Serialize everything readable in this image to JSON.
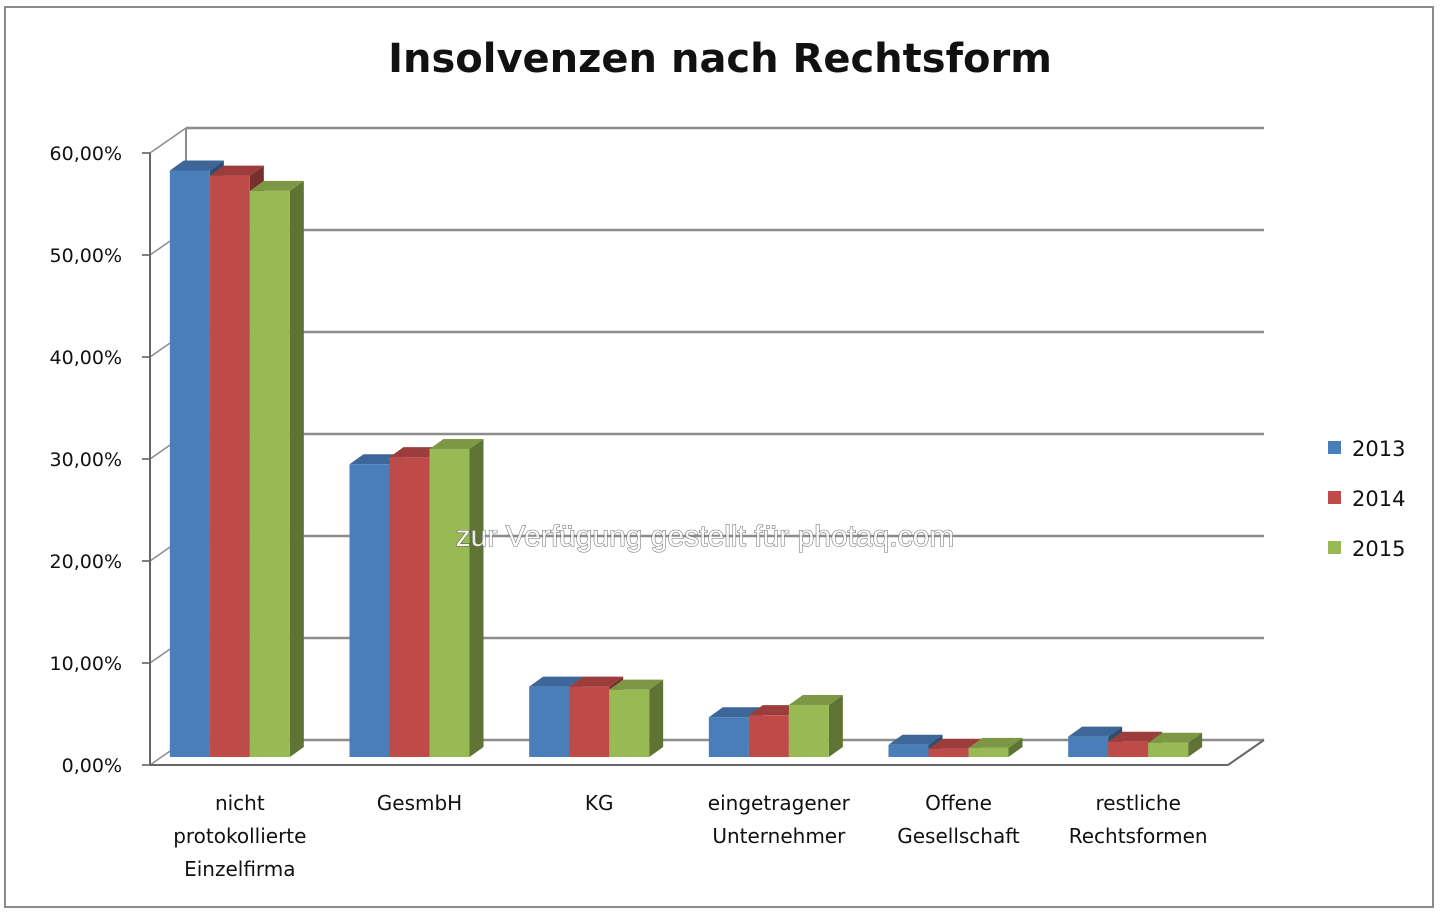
{
  "chart_data": {
    "type": "bar",
    "title": "Insolvenzen nach Rechtsform",
    "categories": [
      [
        "nicht",
        "protokollierte",
        "Einzelfirma"
      ],
      [
        "GesmbH"
      ],
      [
        "KG"
      ],
      [
        "eingetragener",
        "Unternehmer"
      ],
      [
        "Offene",
        "Gesellschaft"
      ],
      [
        "restliche",
        "Rechtsformen"
      ]
    ],
    "series": [
      {
        "name": "2013",
        "color": "#4a7ebb",
        "values": [
          57.5,
          28.7,
          6.9,
          3.9,
          1.2,
          2.0
        ]
      },
      {
        "name": "2014",
        "color": "#be4b48",
        "values": [
          57.0,
          29.4,
          6.9,
          4.1,
          0.8,
          1.5
        ]
      },
      {
        "name": "2015",
        "color": "#98b954",
        "values": [
          55.5,
          30.2,
          6.6,
          5.1,
          0.9,
          1.4
        ]
      }
    ],
    "ylim": [
      0,
      60
    ],
    "yticks": [
      "0,00%",
      "10,00%",
      "20,00%",
      "30,00%",
      "40,00%",
      "50,00%",
      "60,00%"
    ],
    "legend": "right",
    "grid": true
  },
  "watermark": "zur Verfügung gestellt für photaq.com"
}
